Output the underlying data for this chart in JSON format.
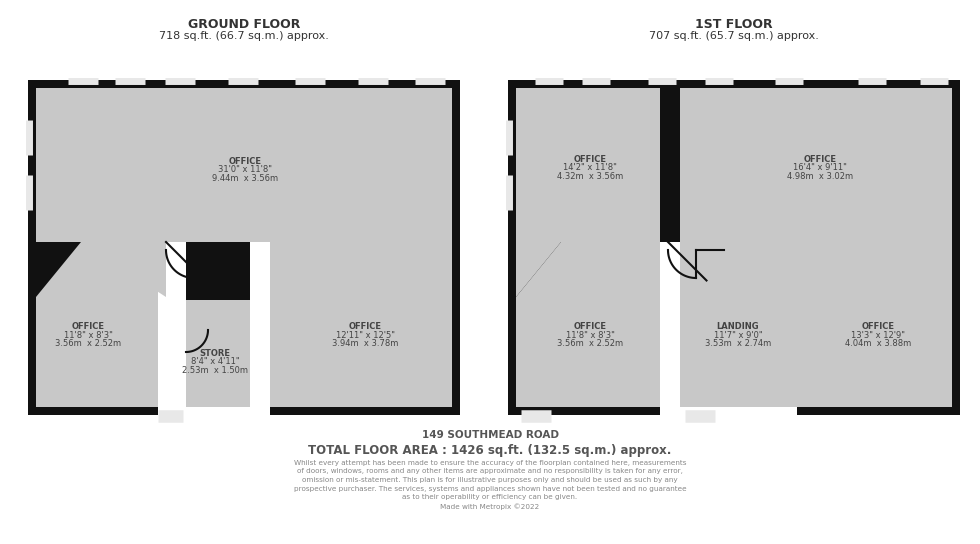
{
  "bg": "#ffffff",
  "wall_color": "#111111",
  "room_fill": "#c8c8c8",
  "win_color": "#e8e8e8",
  "title_gf": "GROUND FLOOR",
  "sub_gf": "718 sq.ft. (66.7 sq.m.) approx.",
  "title_1f": "1ST FLOOR",
  "sub_1f": "707 sq.ft. (65.7 sq.m.) approx.",
  "address": "149 SOUTHMEAD ROAD",
  "total": "TOTAL FLOOR AREA : 1426 sq.ft. (132.5 sq.m.) approx.",
  "disclaimer": "Whilst every attempt has been made to ensure the accuracy of the floorplan contained here, measurements\nof doors, windows, rooms and any other items are approximate and no responsibility is taken for any error,\nomission or mis-statement. This plan is for illustrative purposes only and should be used as such by any\nprospective purchaser. The services, systems and appliances shown have not been tested and no guarantee\nas to their operability or efficiency can be given.\nMade with Metropix ©2022",
  "lc": "#444444",
  "fs": 6.0
}
